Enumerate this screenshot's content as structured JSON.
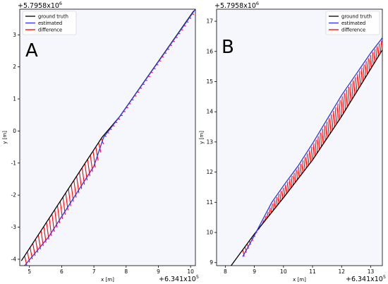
{
  "panels": [
    {
      "label": "A",
      "offset_y": "+5.7958x10",
      "offset_y_exp": "6",
      "offset_x": "+6.341x10",
      "offset_x_exp": "5",
      "xlabel": "x [m]",
      "ylabel": "y [m]",
      "legend": [
        "ground truth",
        "estimated",
        "difference"
      ]
    },
    {
      "label": "B",
      "offset_y": "+5.7958x10",
      "offset_y_exp": "6",
      "offset_x": "+6.341x10",
      "offset_x_exp": "5",
      "xlabel": "x [m]",
      "ylabel": "y [m]",
      "legend": [
        "ground truth",
        "estimated",
        "difference"
      ]
    }
  ],
  "colors": {
    "ground_truth": "#000000",
    "estimated": "#3333ff",
    "difference": "#ff0000",
    "axes_bg": "#f5f7fc"
  },
  "chart_data": [
    {
      "type": "line",
      "title": "",
      "xlabel": "x [m]",
      "ylabel": "y [m]",
      "xlim": [
        4.7,
        10.15
      ],
      "ylim": [
        -4.2,
        3.8
      ],
      "xticks": [
        5,
        6,
        7,
        8,
        9,
        10
      ],
      "yticks": [
        -4,
        -3,
        -2,
        -1,
        0,
        1,
        2,
        3
      ],
      "legend_position": "top-left",
      "grid": false,
      "series": [
        {
          "name": "ground truth",
          "x": [
            4.75,
            7.25,
            7.8,
            10.1
          ],
          "y": [
            -4.05,
            -0.2,
            0.45,
            3.75
          ]
        },
        {
          "name": "estimated",
          "x": [
            4.85,
            5.6,
            7.0,
            7.3,
            7.8,
            10.15
          ],
          "y": [
            -4.2,
            -3.3,
            -1.1,
            -0.2,
            0.45,
            3.8
          ]
        },
        {
          "name": "difference"
        }
      ]
    },
    {
      "type": "line",
      "title": "",
      "xlabel": "x [m]",
      "ylabel": "y [m]",
      "xlim": [
        7.7,
        13.4
      ],
      "ylim": [
        8.9,
        17.4
      ],
      "xticks": [
        8,
        9,
        10,
        11,
        12,
        13
      ],
      "yticks": [
        9,
        10,
        11,
        12,
        13,
        14,
        15,
        16,
        17
      ],
      "legend_position": "top-right",
      "grid": false,
      "series": [
        {
          "name": "ground truth",
          "x": [
            8.2,
            9.0,
            10.0,
            11.0,
            12.0,
            13.4
          ],
          "y": [
            8.9,
            9.95,
            11.15,
            12.4,
            13.85,
            16.05
          ]
        },
        {
          "name": "estimated",
          "x": [
            8.6,
            9.0,
            9.6,
            10.0,
            10.5,
            11.0,
            11.5,
            12.0,
            12.5,
            13.0,
            13.4
          ],
          "y": [
            9.2,
            9.9,
            11.0,
            11.55,
            12.2,
            12.95,
            13.75,
            14.55,
            15.25,
            15.95,
            16.45
          ]
        },
        {
          "name": "difference"
        }
      ]
    }
  ]
}
